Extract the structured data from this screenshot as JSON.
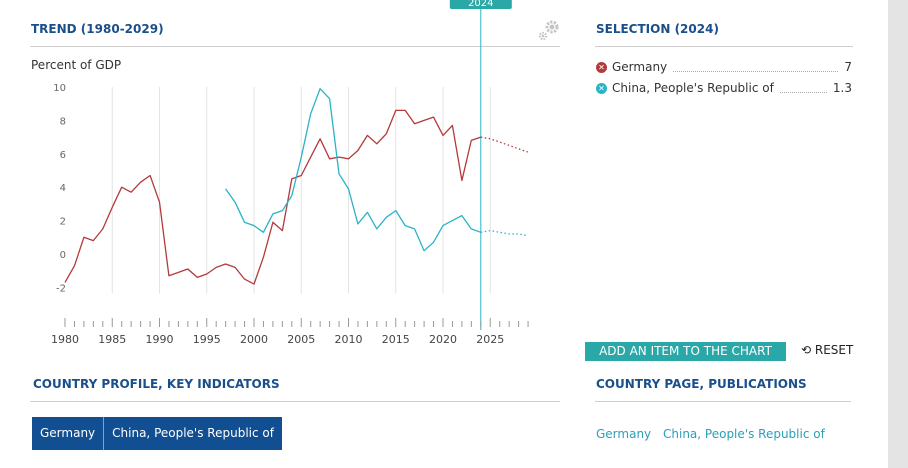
{
  "trend": {
    "title": "TREND (1980-2029)",
    "ylabel": "Percent of GDP",
    "marker_year_label": "2024"
  },
  "selection": {
    "title": "SELECTION (2024)",
    "items": [
      {
        "name": "Germany",
        "value": "7",
        "color": "#b33a3a"
      },
      {
        "name": "China, People's Republic of",
        "value": "1.3",
        "color": "#2ab3c6"
      }
    ]
  },
  "buttons": {
    "add_item": "ADD AN ITEM TO THE CHART",
    "reset": "RESET"
  },
  "icons": {
    "gear": "gear-icon",
    "remove": "close-icon",
    "reset": "refresh-icon"
  },
  "profile": {
    "title": "COUNTRY PROFILE, KEY INDICATORS",
    "tabs": [
      "Germany",
      "China, People's Republic of"
    ]
  },
  "publications": {
    "title": "COUNTRY PAGE, PUBLICATIONS",
    "links": [
      "Germany",
      "China, People's Republic of"
    ]
  },
  "colors": {
    "title_blue": "#1a4f8c",
    "teal": "#2aa8a8",
    "germany": "#b33a3a",
    "china": "#2ab3c6",
    "tab_blue": "#114f92"
  },
  "chart_data": {
    "type": "line",
    "title": "TREND (1980-2029)",
    "ylabel": "Percent of GDP",
    "xlabel": "",
    "xlim": [
      1980,
      2029
    ],
    "ylim": [
      -2,
      10
    ],
    "yticks": [
      -2,
      0,
      2,
      4,
      6,
      8,
      10
    ],
    "xticks": [
      1980,
      1985,
      1990,
      1995,
      2000,
      2005,
      2010,
      2015,
      2020,
      2025
    ],
    "grid": "vertical",
    "marker_year": 2024,
    "series": [
      {
        "name": "Germany",
        "color": "#b33a3a",
        "x": [
          1980,
          1981,
          1982,
          1983,
          1984,
          1985,
          1986,
          1987,
          1988,
          1989,
          1990,
          1991,
          1992,
          1993,
          1994,
          1995,
          1996,
          1997,
          1998,
          1999,
          2000,
          2001,
          2002,
          2003,
          2004,
          2005,
          2006,
          2007,
          2008,
          2009,
          2010,
          2011,
          2012,
          2013,
          2014,
          2015,
          2016,
          2017,
          2018,
          2019,
          2020,
          2021,
          2022,
          2023,
          2024,
          2025,
          2026,
          2027,
          2028,
          2029
        ],
        "values": [
          -1.7,
          -0.7,
          1.0,
          0.8,
          1.5,
          2.8,
          4.0,
          3.7,
          4.3,
          4.7,
          3.1,
          -1.3,
          -1.1,
          -0.9,
          -1.4,
          -1.2,
          -0.8,
          -0.6,
          -0.8,
          -1.5,
          -1.8,
          -0.2,
          1.9,
          1.4,
          4.5,
          4.7,
          5.8,
          6.9,
          5.7,
          5.8,
          5.7,
          6.2,
          7.1,
          6.6,
          7.2,
          8.6,
          8.6,
          7.8,
          8.0,
          8.2,
          7.1,
          7.7,
          4.4,
          6.8,
          7.0,
          6.9,
          6.7,
          6.5,
          6.3,
          6.1
        ],
        "projection_from": 2025
      },
      {
        "name": "China, People's Republic of",
        "color": "#2ab3c6",
        "x": [
          1997,
          1998,
          1999,
          2000,
          2001,
          2002,
          2003,
          2004,
          2005,
          2006,
          2007,
          2008,
          2009,
          2010,
          2011,
          2012,
          2013,
          2014,
          2015,
          2016,
          2017,
          2018,
          2019,
          2020,
          2021,
          2022,
          2023,
          2024,
          2025,
          2026,
          2027,
          2028,
          2029
        ],
        "values": [
          3.9,
          3.1,
          1.9,
          1.7,
          1.3,
          2.4,
          2.6,
          3.5,
          5.8,
          8.4,
          9.9,
          9.3,
          4.8,
          3.9,
          1.8,
          2.5,
          1.5,
          2.2,
          2.6,
          1.7,
          1.5,
          0.2,
          0.7,
          1.7,
          2.0,
          2.3,
          1.5,
          1.3,
          1.4,
          1.3,
          1.2,
          1.2,
          1.1
        ],
        "projection_from": 2025
      }
    ]
  }
}
